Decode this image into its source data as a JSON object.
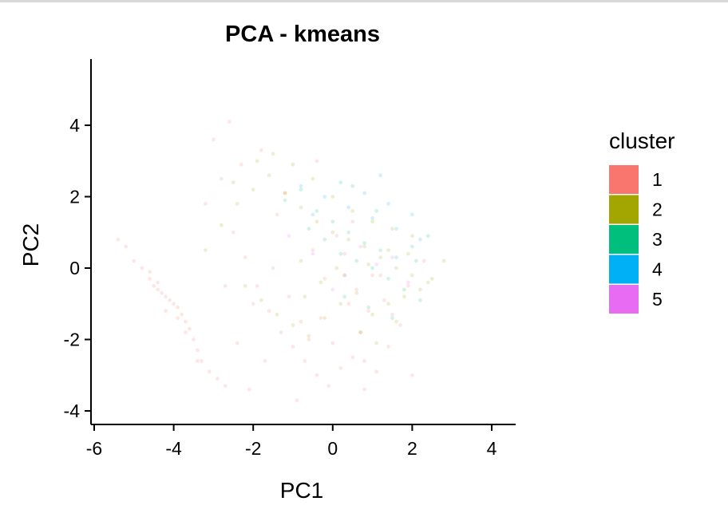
{
  "chart_data": {
    "type": "scatter",
    "title": "PCA - kmeans",
    "xlabel": "PC1",
    "ylabel": "PC2",
    "xlim": [
      -6.05,
      4.6
    ],
    "ylim": [
      -4.3,
      5.9
    ],
    "xticks": [
      -6,
      -4,
      -2,
      0,
      2,
      4
    ],
    "yticks": [
      -4,
      -2,
      0,
      2,
      4
    ],
    "grid": false,
    "point_alpha": 0.18,
    "legend": {
      "title": "cluster",
      "placement": "right"
    },
    "series": [
      {
        "name": "1",
        "color": "#F8766D",
        "x": [
          -5.4,
          -5.2,
          -5.0,
          -4.8,
          -4.6,
          -4.5,
          -4.4,
          -4.3,
          -4.2,
          -4.1,
          -4.0,
          -3.9,
          -3.8,
          -3.7,
          -3.6,
          -3.5,
          -3.4,
          -3.3,
          -3.1,
          -2.9,
          -2.7,
          -4.6,
          -4.4,
          -4.2,
          -3.9,
          -3.7,
          -3.2,
          -2.8,
          -2.5,
          -2.2,
          -1.9,
          -1.6,
          -1.3,
          -1.0,
          -0.7,
          -0.4,
          -0.1,
          0.2,
          0.5,
          0.8,
          1.1,
          1.4,
          1.7,
          2.0,
          2.3,
          -3.0,
          -2.6,
          -2.3,
          -1.8,
          -1.4,
          -1.1,
          -0.8,
          -0.5,
          -0.2,
          0.1,
          0.4,
          0.7,
          1.0,
          1.3,
          0.3,
          0.6,
          0.9,
          -0.3,
          -0.6,
          -2.0,
          -1.5,
          -2.7,
          -3.4,
          -1.2,
          0.0,
          0.8,
          1.5,
          -0.9,
          -2.4,
          1.9,
          0.5,
          1.2,
          -1.7,
          -2.1,
          -0.4
        ],
        "y": [
          0.8,
          0.6,
          0.2,
          0.0,
          -0.3,
          -0.5,
          -0.6,
          -0.7,
          -0.8,
          -0.9,
          -1.0,
          -1.1,
          -1.3,
          -1.5,
          -1.7,
          -2.0,
          -2.3,
          -2.6,
          -2.9,
          -3.1,
          -3.3,
          -0.1,
          -0.4,
          -1.2,
          -1.4,
          -1.8,
          1.8,
          2.5,
          1.0,
          0.3,
          -0.5,
          -1.2,
          -1.8,
          -2.2,
          -2.6,
          -3.0,
          -3.3,
          -2.8,
          -2.5,
          -3.4,
          -2.9,
          -2.2,
          -1.6,
          -3.0,
          0.2,
          3.6,
          4.1,
          2.9,
          3.3,
          1.5,
          -0.8,
          -1.5,
          0.5,
          -0.3,
          0.9,
          -1.0,
          -1.8,
          -0.2,
          -0.9,
          0.4,
          -0.6,
          -1.2,
          -1.4,
          -2.0,
          -1.0,
          0.0,
          -0.5,
          -2.6,
          2.1,
          -2.1,
          -2.6,
          -1.3,
          -3.7,
          -2.1,
          -0.5,
          1.3,
          -0.2,
          -2.6,
          -3.4,
          3.0
        ]
      },
      {
        "name": "2",
        "color": "#A3A500",
        "x": [
          -3.2,
          -2.8,
          -2.4,
          -2.0,
          -1.6,
          -1.2,
          -0.8,
          -0.4,
          0.0,
          0.4,
          0.8,
          1.2,
          1.6,
          2.0,
          2.4,
          2.8,
          -2.2,
          -1.8,
          -1.4,
          -1.0,
          -0.6,
          -0.2,
          0.2,
          0.6,
          1.0,
          1.4,
          1.8,
          2.2,
          -1.5,
          -1.0,
          -0.5,
          0.0,
          0.5,
          1.0,
          1.5,
          2.0,
          -0.8,
          -0.3,
          0.3,
          0.9,
          1.4,
          1.9,
          -2.5,
          -1.9,
          0.7,
          1.1,
          1.6,
          2.5,
          0.1,
          -0.7
        ],
        "y": [
          0.5,
          1.2,
          1.8,
          2.2,
          2.6,
          2.1,
          1.7,
          1.3,
          1.0,
          0.8,
          0.6,
          0.3,
          0.0,
          -0.2,
          -0.4,
          0.2,
          -0.5,
          -0.9,
          -1.3,
          -1.6,
          -1.9,
          -1.4,
          -1.0,
          -0.7,
          -1.3,
          -1.0,
          -0.8,
          -0.6,
          3.2,
          2.9,
          2.5,
          2.0,
          1.6,
          1.3,
          1.1,
          0.9,
          0.2,
          -0.4,
          -0.2,
          0.1,
          0.5,
          0.4,
          2.4,
          3.0,
          -1.8,
          -2.1,
          -1.5,
          -0.3,
          0.0,
          -0.8
        ]
      },
      {
        "name": "3",
        "color": "#00BF7D",
        "x": [
          -1.2,
          -0.8,
          -0.4,
          0.0,
          0.4,
          0.8,
          1.2,
          1.6,
          2.0,
          2.4,
          -0.6,
          -0.2,
          0.2,
          0.6,
          1.0,
          1.4,
          1.8,
          2.2,
          0.3,
          0.9,
          1.5,
          2.1,
          1.1,
          0.5
        ],
        "y": [
          1.9,
          2.2,
          1.6,
          1.3,
          1.0,
          0.7,
          0.5,
          0.3,
          0.6,
          0.9,
          1.1,
          0.8,
          0.4,
          0.2,
          0.0,
          -0.3,
          -0.6,
          -0.9,
          -0.8,
          -1.1,
          -1.4,
          0.2,
          1.6,
          2.3
        ]
      },
      {
        "name": "4",
        "color": "#00B0F6",
        "x": [
          -0.8,
          -0.2,
          0.4,
          1.0,
          1.6,
          2.2,
          0.2,
          0.8,
          1.4,
          2.0,
          -0.5,
          1.2
        ],
        "y": [
          2.3,
          2.0,
          1.7,
          1.4,
          1.1,
          0.8,
          2.4,
          2.1,
          1.8,
          1.5,
          1.5,
          2.6
        ]
      },
      {
        "name": "5",
        "color": "#E76BF3",
        "x": [
          -0.5,
          0.3,
          1.1,
          1.9,
          -1.1,
          0.7,
          1.5,
          0.0
        ],
        "y": [
          0.4,
          -0.2,
          0.1,
          -0.4,
          0.9,
          0.6,
          0.3,
          -0.6
        ]
      }
    ]
  }
}
